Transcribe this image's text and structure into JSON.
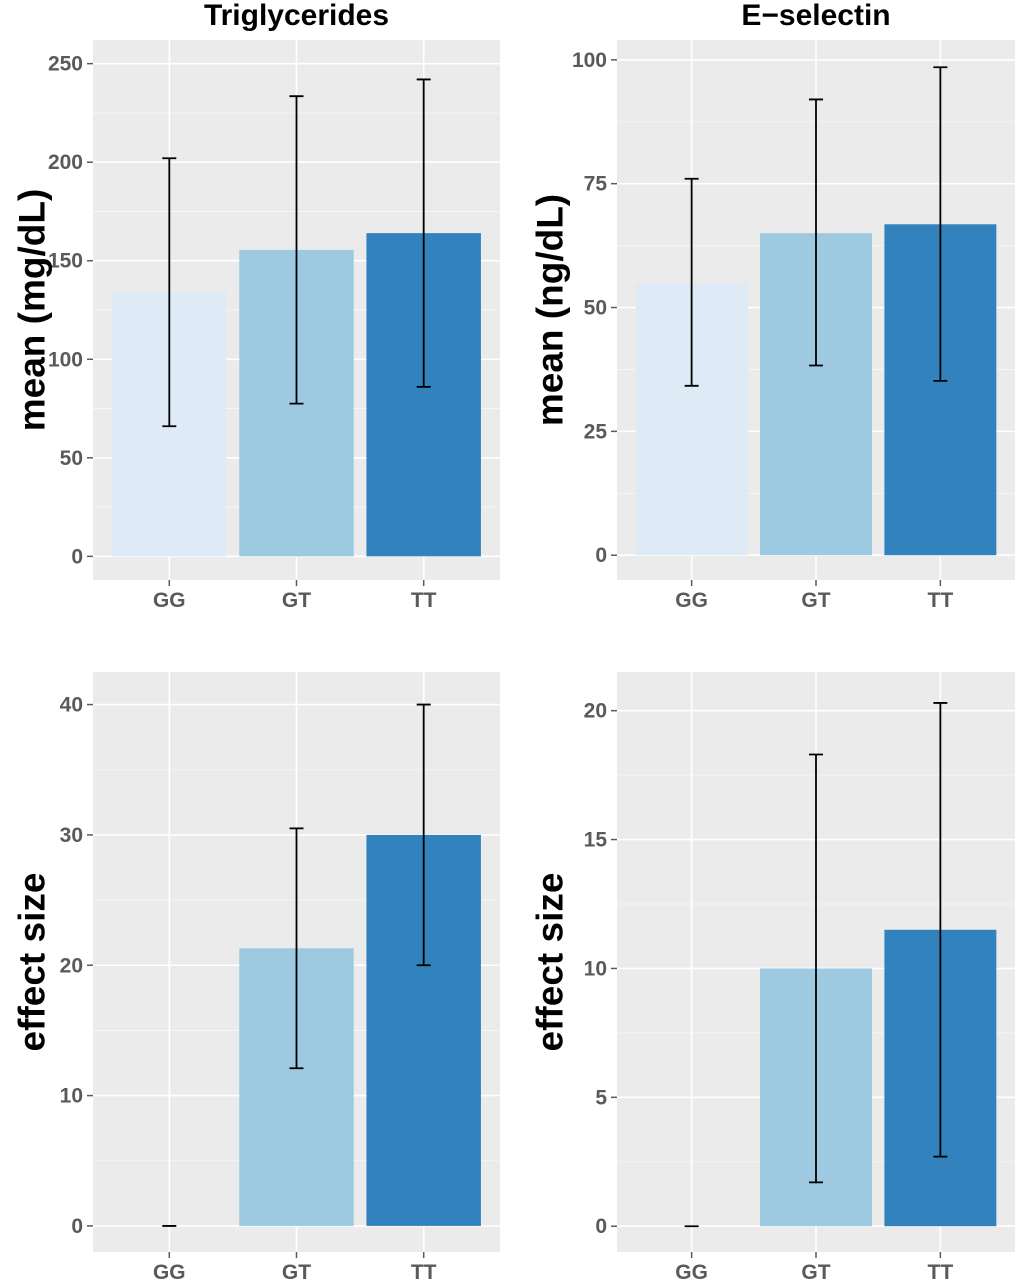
{
  "colors": {
    "panel_background": "#ebebeb",
    "grid": "#ffffff",
    "GG": "#deebf7",
    "GT": "#9ecae1",
    "TT": "#3182bd"
  },
  "chart_data": [
    {
      "type": "bar",
      "title": "Triglycerides",
      "xlabel": "",
      "ylabel": "mean (mg/dL)",
      "categories": [
        "GG",
        "GT",
        "TT"
      ],
      "values": [
        134,
        155.5,
        164
      ],
      "error_low": [
        66,
        77.5,
        86
      ],
      "error_high": [
        202,
        233.5,
        242
      ],
      "ylim": [
        -12,
        262
      ],
      "yticks": [
        0,
        50,
        100,
        150,
        200,
        250
      ],
      "grid": true
    },
    {
      "type": "bar",
      "title": "E−selectin",
      "xlabel": "",
      "ylabel": "mean (ng/dL)",
      "categories": [
        "GG",
        "GT",
        "TT"
      ],
      "values": [
        55,
        65,
        66.8
      ],
      "error_low": [
        34.2,
        38.3,
        35.2
      ],
      "error_high": [
        76,
        92,
        98.5
      ],
      "ylim": [
        -5,
        104
      ],
      "yticks": [
        0,
        25,
        50,
        75,
        100
      ],
      "grid": true
    },
    {
      "type": "bar",
      "title": "",
      "xlabel": "",
      "ylabel": "effect size",
      "categories": [
        "GG",
        "GT",
        "TT"
      ],
      "values": [
        0,
        21.3,
        30
      ],
      "error_low": [
        0,
        12.1,
        20
      ],
      "error_high": [
        0,
        30.5,
        40
      ],
      "ylim": [
        -2,
        42.5
      ],
      "yticks": [
        0,
        10,
        20,
        30,
        40
      ],
      "grid": true
    },
    {
      "type": "bar",
      "title": "",
      "xlabel": "",
      "ylabel": "effect size",
      "categories": [
        "GG",
        "GT",
        "TT"
      ],
      "values": [
        0,
        10,
        11.5
      ],
      "error_low": [
        0,
        1.7,
        2.7
      ],
      "error_high": [
        0,
        18.3,
        20.3
      ],
      "ylim": [
        -1,
        21.5
      ],
      "yticks": [
        0,
        5,
        10,
        15,
        20
      ],
      "grid": true
    }
  ]
}
